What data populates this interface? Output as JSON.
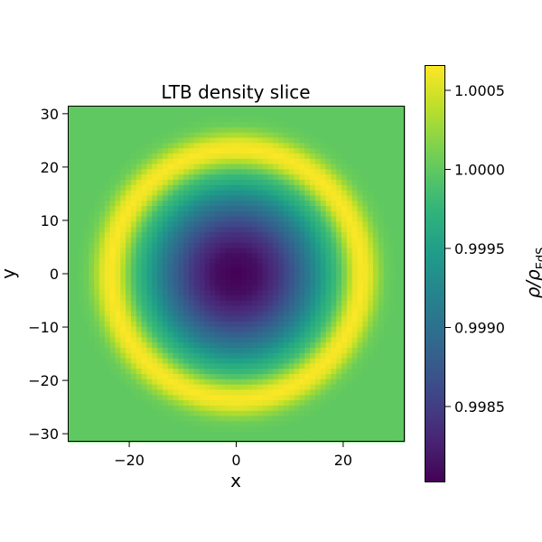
{
  "chart_data": {
    "type": "heatmap",
    "title": "LTB density slice",
    "xlabel": "x",
    "ylabel": "y",
    "colorbar_label_main": "ρ/ρ",
    "colorbar_label_sub": "EdS",
    "colormap": "viridis",
    "xlim": [
      -31.5,
      31.5
    ],
    "ylim": [
      -31.5,
      31.5
    ],
    "x_ticks": [
      -20,
      0,
      20
    ],
    "x_tick_labels": [
      "−20",
      "0",
      "20"
    ],
    "y_ticks": [
      -30,
      -20,
      -10,
      0,
      10,
      20,
      30
    ],
    "y_tick_labels": [
      "−30",
      "−20",
      "−10",
      "0",
      "10",
      "20",
      "30"
    ],
    "colorbar_range": [
      0.99802,
      1.00066
    ],
    "colorbar_ticks": [
      0.9985,
      0.999,
      0.9995,
      1.0,
      1.0005
    ],
    "colorbar_tick_labels": [
      "0.9985",
      "0.9990",
      "0.9995",
      "1.0000",
      "1.0005"
    ],
    "grid_size": 64,
    "radial_profile": {
      "r": [
        0,
        4,
        8,
        11,
        13,
        15,
        17,
        19,
        20.5,
        22,
        23.5,
        25,
        26.5,
        28,
        30,
        32,
        36,
        45
      ],
      "value": [
        0.99802,
        0.99812,
        0.99843,
        0.99878,
        0.99903,
        0.99932,
        0.99962,
        0.99988,
        1.0002,
        1.00055,
        1.00066,
        1.00055,
        1.00025,
        1.00006,
        1.0,
        1.0,
        1.0,
        1.0
      ]
    },
    "background_value": 1.0
  }
}
